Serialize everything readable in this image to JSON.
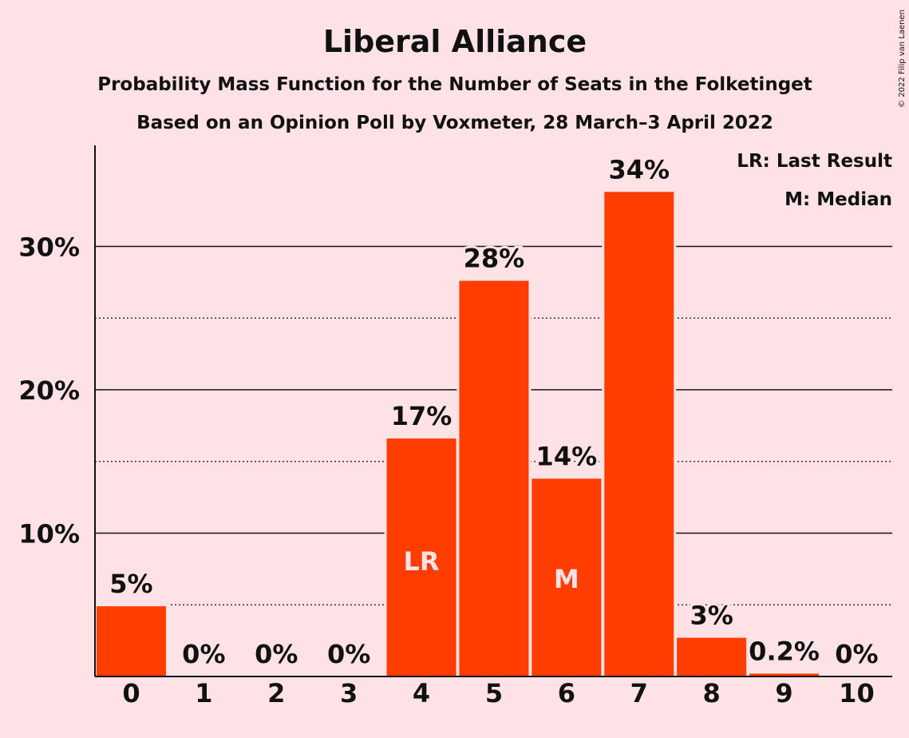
{
  "chart_data": {
    "type": "bar",
    "title": "Liberal Alliance",
    "subtitle": "Probability Mass Function for the Number of Seats in the Folketinget",
    "subtitle2": "Based on an Opinion Poll by Voxmeter, 28 March–3 April 2022",
    "categories": [
      "0",
      "1",
      "2",
      "3",
      "4",
      "5",
      "6",
      "7",
      "8",
      "9",
      "10"
    ],
    "values": [
      4.9,
      0,
      0,
      0,
      16.6,
      27.6,
      13.8,
      33.8,
      2.7,
      0.2,
      0
    ],
    "data_labels": [
      "5%",
      "0%",
      "0%",
      "0%",
      "17%",
      "28%",
      "14%",
      "34%",
      "3%",
      "0.2%",
      "0%"
    ],
    "inside_labels": {
      "4": "LR",
      "6": "M"
    },
    "ylim": [
      0,
      37
    ],
    "yticks": [
      10,
      20,
      30
    ],
    "ytick_labels": [
      "10%",
      "20%",
      "30%"
    ],
    "minor_gridlines": [
      5,
      15,
      25
    ],
    "grid": true,
    "legend": [
      "LR: Last Result",
      "M: Median"
    ],
    "legend_position": "top-right",
    "credit": "© 2022 Filip van Laenen",
    "colors": {
      "bar": "#FF3D00",
      "background": "#FFE2E5",
      "text": "#111111"
    }
  }
}
